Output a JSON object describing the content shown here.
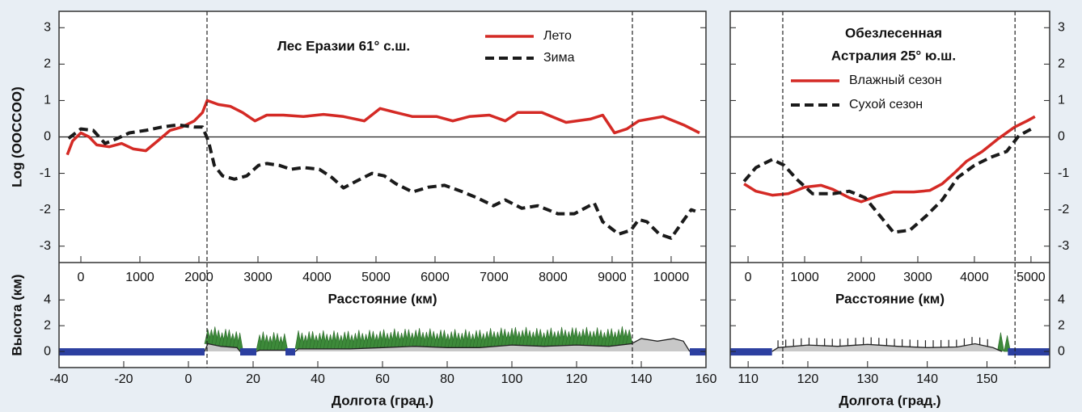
{
  "chart_data": [
    {
      "type": "line",
      "title": "Лес Еразии 61° с.ш.",
      "xlabel": "Расстояние (км)",
      "ylabel": "Log (OOCCOO)",
      "xlim": [
        -370,
        10590
      ],
      "ylim": [
        -3.45,
        3.45
      ],
      "xticks": [
        0,
        1000,
        2000,
        3000,
        4000,
        5000,
        6000,
        7000,
        8000,
        9000,
        10000
      ],
      "yticks": [
        -3,
        -2,
        -1,
        0,
        1,
        2,
        3
      ],
      "hline": 0,
      "series": [
        {
          "name": "Лето",
          "color": "#d42a25",
          "style": "solid",
          "x": [
            -230,
            -140,
            0,
            140,
            270,
            480,
            690,
            890,
            1100,
            1300,
            1510,
            1710,
            1920,
            2060,
            2140,
            2330,
            2530,
            2740,
            2950,
            3150,
            3430,
            3770,
            4110,
            4450,
            4800,
            5070,
            5340,
            5620,
            6030,
            6300,
            6580,
            6920,
            7190,
            7400,
            7810,
            8220,
            8630,
            8840,
            9040,
            9250,
            9450,
            9860,
            10210,
            10480
          ],
          "values": [
            -0.49,
            -0.11,
            0.11,
            0,
            -0.22,
            -0.27,
            -0.18,
            -0.33,
            -0.38,
            -0.11,
            0.18,
            0.27,
            0.44,
            0.67,
            1.0,
            0.89,
            0.84,
            0.67,
            0.44,
            0.6,
            0.6,
            0.56,
            0.62,
            0.56,
            0.44,
            0.78,
            0.67,
            0.56,
            0.56,
            0.44,
            0.56,
            0.6,
            0.44,
            0.67,
            0.67,
            0.4,
            0.49,
            0.6,
            0.11,
            0.22,
            0.44,
            0.56,
            0.33,
            0.11
          ]
        },
        {
          "name": "Зима",
          "color": "#1a1a1a",
          "style": "dashed",
          "x": [
            -210,
            0,
            210,
            410,
            620,
            820,
            1100,
            1370,
            1640,
            1920,
            2060,
            2160,
            2260,
            2400,
            2600,
            2810,
            3010,
            3150,
            3360,
            3560,
            3770,
            4040,
            4250,
            4450,
            4660,
            4930,
            5140,
            5340,
            5620,
            5890,
            6160,
            6440,
            6710,
            6990,
            7190,
            7470,
            7740,
            8080,
            8360,
            8700,
            8840,
            9110,
            9320,
            9450,
            9590,
            9800,
            10000,
            10210,
            10340,
            10410
          ],
          "values": [
            -0.04,
            0.22,
            0.18,
            -0.18,
            -0.04,
            0.11,
            0.18,
            0.27,
            0.33,
            0.27,
            0.27,
            -0.11,
            -0.78,
            -1.07,
            -1.16,
            -1.07,
            -0.78,
            -0.73,
            -0.78,
            -0.89,
            -0.84,
            -0.89,
            -1.11,
            -1.4,
            -1.22,
            -1.0,
            -1.07,
            -1.29,
            -1.51,
            -1.38,
            -1.33,
            -1.49,
            -1.67,
            -1.89,
            -1.73,
            -1.96,
            -1.89,
            -2.11,
            -2.11,
            -1.82,
            -2.33,
            -2.67,
            -2.56,
            -2.27,
            -2.33,
            -2.67,
            -2.78,
            -2.29,
            -2.0,
            -2.04
          ]
        }
      ]
    },
    {
      "type": "profile",
      "xlabel": "Долгота (град.)",
      "ylabel": "Высота (км)",
      "xlim": [
        -40,
        160
      ],
      "ylim": [
        -1.25,
        6.9
      ],
      "xticks": [
        -40,
        -20,
        0,
        20,
        40,
        60,
        80,
        100,
        120,
        140,
        160
      ],
      "yticks": [
        0,
        2,
        4
      ],
      "terrain": {
        "x": [
          5,
          6,
          10,
          15,
          16,
          21,
          22,
          30,
          31,
          33,
          34,
          50,
          60,
          70,
          80,
          90,
          100,
          110,
          120,
          130,
          137,
          140,
          145,
          150,
          153,
          155
        ],
        "values": [
          0,
          0.6,
          0.4,
          0.3,
          0,
          0,
          0.1,
          0.1,
          0,
          0,
          0.2,
          0.2,
          0.3,
          0.4,
          0.3,
          0.3,
          0.5,
          0.4,
          0.5,
          0.4,
          0.6,
          1.0,
          0.8,
          1.0,
          0.8,
          0
        ]
      },
      "ocean": [
        [
          -40,
          5
        ],
        [
          16,
          21
        ],
        [
          30,
          33
        ],
        [
          155,
          160
        ]
      ],
      "forest": [
        [
          6,
          16
        ],
        [
          22,
          30
        ],
        [
          34,
          137
        ]
      ],
      "shrub": [],
      "boundaries": [
        5.75,
        137.25
      ]
    },
    {
      "type": "line",
      "title": [
        "Обезлесенная",
        "Астралия 25° ю.ш."
      ],
      "xlabel": "Расстояние (км)",
      "xlim": [
        -315,
        5330
      ],
      "ylim": [
        -3.45,
        3.45
      ],
      "xticks": [
        0,
        1000,
        2000,
        3000,
        4000,
        5000
      ],
      "yticks": [
        -3,
        -2,
        -1,
        0,
        1,
        2,
        3
      ],
      "hline": 0,
      "series": [
        {
          "name": "Влажный сезон",
          "color": "#d42a25",
          "style": "solid",
          "x": [
            -70,
            140,
            430,
            710,
            1000,
            1290,
            1500,
            1790,
            2000,
            2290,
            2570,
            2930,
            3210,
            3430,
            3640,
            3860,
            4140,
            4430,
            4710,
            4930,
            5070
          ],
          "values": [
            -1.29,
            -1.49,
            -1.6,
            -1.56,
            -1.38,
            -1.33,
            -1.44,
            -1.67,
            -1.78,
            -1.62,
            -1.51,
            -1.51,
            -1.47,
            -1.29,
            -1.0,
            -0.67,
            -0.4,
            -0.04,
            0.27,
            0.44,
            0.56
          ]
        },
        {
          "name": "Сухой сезон",
          "color": "#1a1a1a",
          "style": "dashed",
          "x": [
            -70,
            140,
            430,
            640,
            860,
            1140,
            1500,
            1790,
            2070,
            2360,
            2570,
            2860,
            3140,
            3430,
            3710,
            4000,
            4290,
            4570,
            4790,
            5070
          ],
          "values": [
            -1.22,
            -0.84,
            -0.62,
            -0.78,
            -1.16,
            -1.56,
            -1.56,
            -1.49,
            -1.67,
            -2.22,
            -2.62,
            -2.56,
            -2.18,
            -1.73,
            -1.11,
            -0.78,
            -0.56,
            -0.4,
            0.04,
            0.27
          ]
        }
      ]
    },
    {
      "type": "profile",
      "xlabel": "Долгота (град.)",
      "xlim": [
        107,
        160.5
      ],
      "ylim": [
        -1.25,
        6.9
      ],
      "xticks": [
        110,
        120,
        130,
        140,
        150
      ],
      "yticks": [
        0,
        2,
        4
      ],
      "terrain": {
        "x": [
          114,
          115,
          120,
          125,
          130,
          135,
          140,
          145,
          148,
          151,
          152.5
        ],
        "values": [
          0,
          0.3,
          0.5,
          0.4,
          0.55,
          0.4,
          0.3,
          0.35,
          0.6,
          0.3,
          0
        ]
      },
      "ocean": [
        [
          107,
          114
        ],
        [
          153.5,
          160.5
        ]
      ],
      "forest": [
        [
          152.3,
          153.4
        ]
      ],
      "shrub": [
        [
          115,
          151
        ]
      ],
      "boundaries": [
        115.8,
        154.7
      ]
    }
  ]
}
